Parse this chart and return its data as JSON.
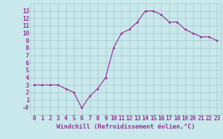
{
  "x": [
    0,
    1,
    2,
    3,
    4,
    5,
    6,
    7,
    8,
    9,
    10,
    11,
    12,
    13,
    14,
    15,
    16,
    17,
    18,
    19,
    20,
    21,
    22,
    23
  ],
  "y": [
    3,
    3,
    3,
    3,
    2.5,
    2,
    -0.1,
    1.5,
    2.5,
    4,
    8,
    10,
    10.5,
    11.5,
    13,
    13,
    12.5,
    11.5,
    11.5,
    10.5,
    10,
    9.5,
    9.5,
    9
  ],
  "line_color": "#993399",
  "marker_color": "#993399",
  "bg_color": "#c8e8ec",
  "grid_color": "#aacccc",
  "xlabel": "Windchill (Refroidissement éolien,°C)",
  "xlabel_color": "#993399",
  "xlabel_fontsize": 6.5,
  "tick_color": "#993399",
  "tick_fontsize": 6,
  "ylim": [
    -1,
    14
  ],
  "xlim": [
    -0.5,
    23.5
  ],
  "yticks": [
    0,
    1,
    2,
    3,
    4,
    5,
    6,
    7,
    8,
    9,
    10,
    11,
    12,
    13
  ],
  "xticks": [
    0,
    1,
    2,
    3,
    4,
    5,
    6,
    7,
    8,
    9,
    10,
    11,
    12,
    13,
    14,
    15,
    16,
    17,
    18,
    19,
    20,
    21,
    22,
    23
  ],
  "xtick_labels": [
    "0",
    "1",
    "2",
    "3",
    "4",
    "5",
    "6",
    "7",
    "8",
    "9",
    "10",
    "11",
    "12",
    "13",
    "14",
    "15",
    "16",
    "17",
    "18",
    "19",
    "20",
    "21",
    "22",
    "23"
  ],
  "ytick_labels": [
    "-0",
    "1",
    "2",
    "3",
    "4",
    "5",
    "6",
    "7",
    "8",
    "9",
    "10",
    "11",
    "12",
    "13"
  ]
}
